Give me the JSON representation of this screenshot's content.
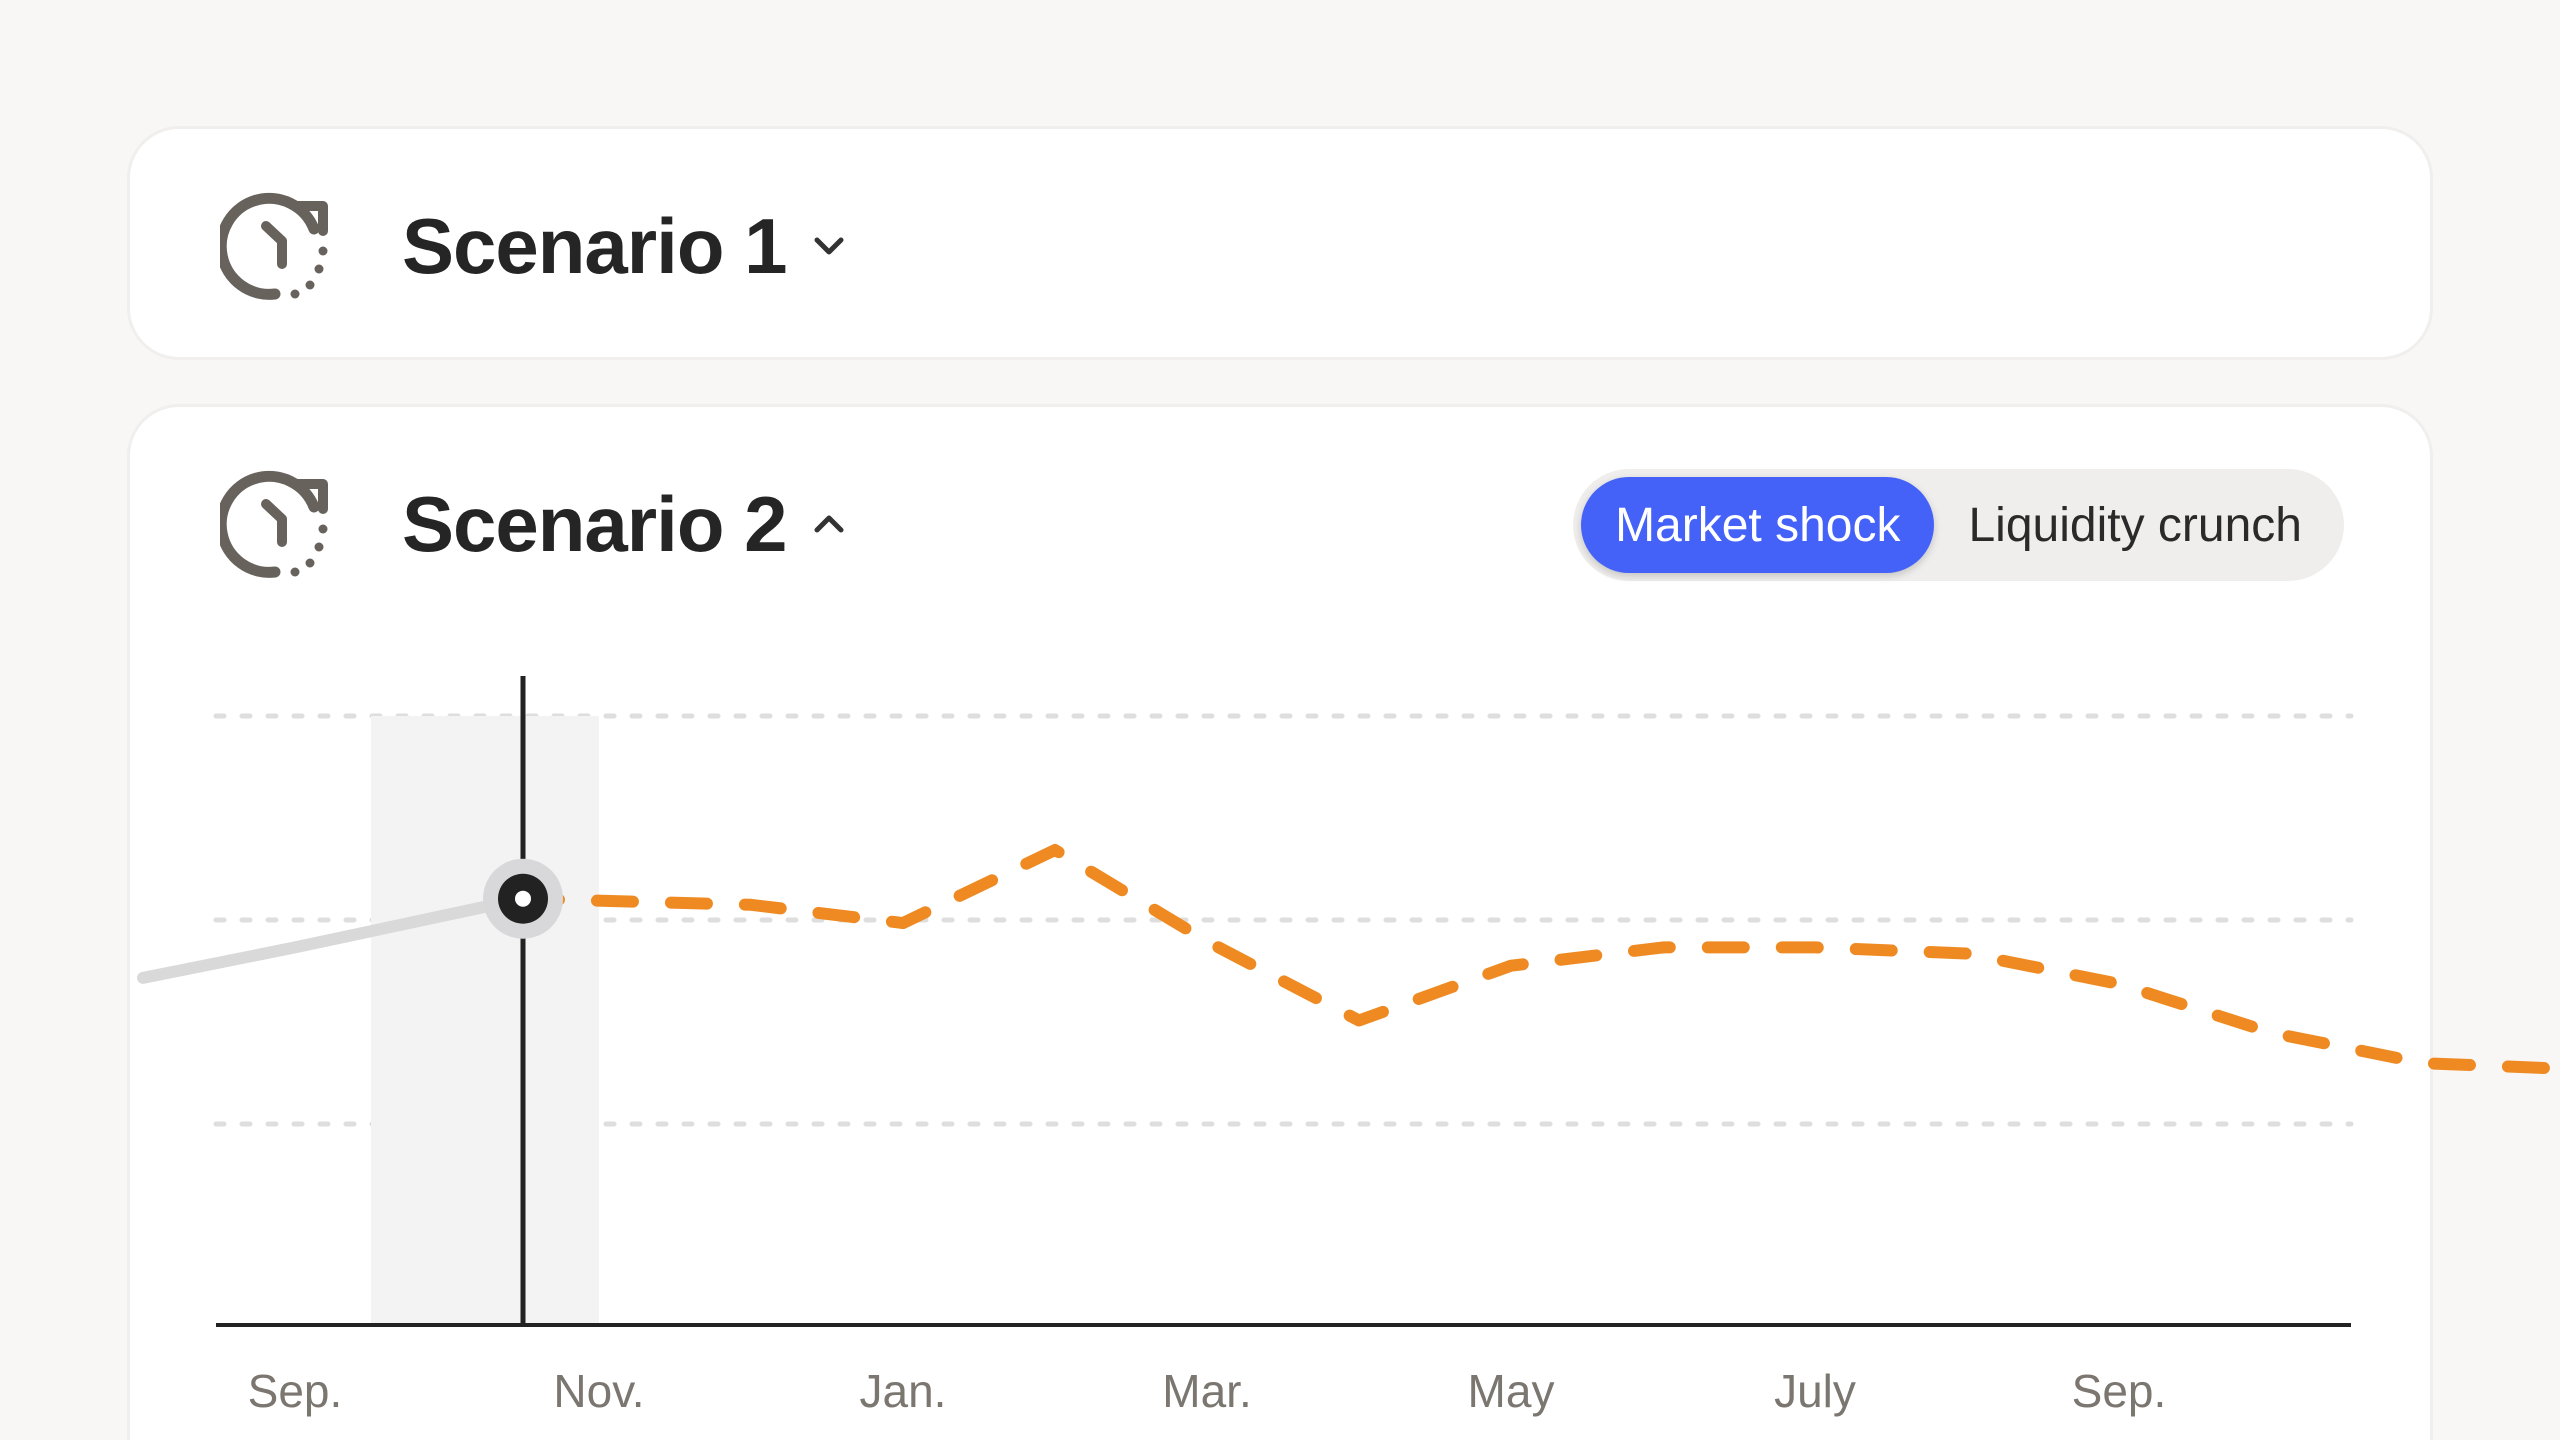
{
  "scenarios": [
    {
      "title": "Scenario 1",
      "expanded": false,
      "icon": "clock-restore-icon",
      "chevron": "chevron-down-icon"
    },
    {
      "title": "Scenario 2",
      "expanded": true,
      "icon": "clock-restore-icon",
      "chevron": "chevron-up-icon"
    }
  ],
  "toggle": {
    "options": [
      "Market shock",
      "Liquidity crunch"
    ],
    "selected": "Market shock"
  },
  "colors": {
    "accent": "#4462f8",
    "projection_line": "#ef8a22",
    "history_line": "#d9d9d9",
    "cursor": "#222222"
  },
  "chart_data": {
    "type": "line",
    "x_tick_labels": [
      "Sep.",
      "Nov.",
      "Jan.",
      "Mar.",
      "May",
      "July",
      "Sep."
    ],
    "y_gridlines": 3,
    "grid": "dotted horizontal",
    "series": [
      {
        "style": "solid gray",
        "x": [
          -0.5,
          0,
          0.75
        ],
        "y": [
          57,
          62,
          70
        ]
      },
      {
        "style": "dashed orange",
        "x": [
          0.75,
          1.5,
          2.0,
          2.5,
          3.0,
          3.5,
          4.0,
          4.5,
          5.0,
          5.5,
          6.0,
          6.5,
          7.0,
          7.5
        ],
        "y": [
          70,
          69,
          66,
          78,
          63,
          50,
          59,
          62,
          62,
          61,
          56,
          48,
          43,
          42
        ]
      }
    ],
    "cursor_x": 0.75,
    "highlight_band_x": [
      0.25,
      0.75
    ]
  }
}
